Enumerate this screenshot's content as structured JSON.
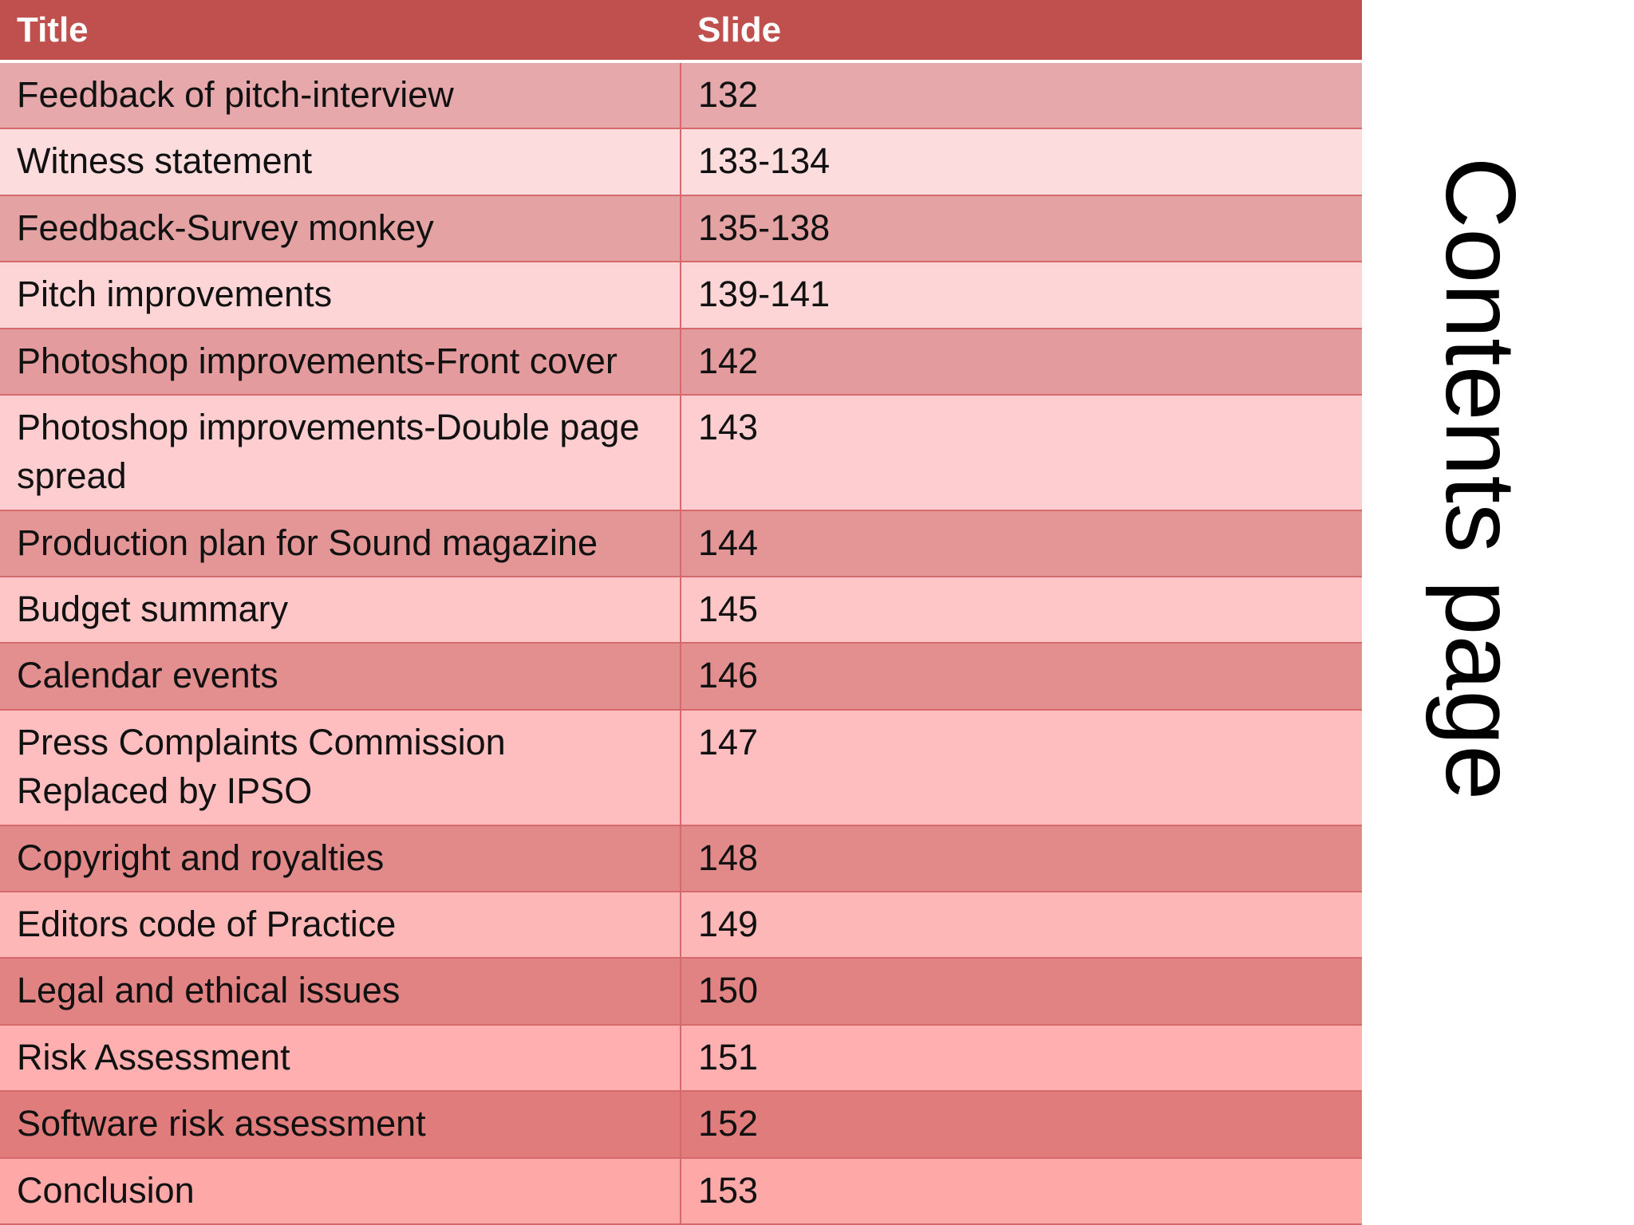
{
  "header": {
    "columns": [
      "Title",
      "Slide"
    ]
  },
  "table": {
    "rows": [
      [
        "Feedback of pitch-interview",
        "132"
      ],
      [
        "Witness statement",
        "133-134"
      ],
      [
        "Feedback-Survey monkey",
        "135-138"
      ],
      [
        "Pitch improvements",
        "139-141"
      ],
      [
        "Photoshop improvements-Front cover",
        "142"
      ],
      [
        "Photoshop improvements-Double page spread",
        "143"
      ],
      [
        "Production plan for Sound magazine",
        "144"
      ],
      [
        "Budget summary",
        "145"
      ],
      [
        "Calendar events",
        "146"
      ],
      [
        "Press Complaints Commission Replaced by IPSO",
        "147"
      ],
      [
        "Copyright and royalties",
        "148"
      ],
      [
        "Editors code of Practice",
        "149"
      ],
      [
        "Legal and ethical issues",
        "150"
      ],
      [
        "Risk Assessment",
        "151"
      ],
      [
        "Software risk assessment",
        "152"
      ],
      [
        "Conclusion",
        "153"
      ]
    ]
  },
  "side_title": "Contents page"
}
